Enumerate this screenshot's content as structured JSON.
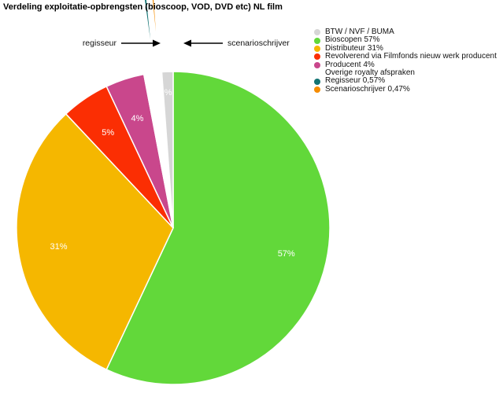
{
  "chart_data": {
    "type": "pie",
    "title": "Verdeling exploitatie-opbrengsten (bioscoop, VOD, DVD etc) NL film",
    "slices": [
      {
        "key": "bioscopen",
        "legend": "Bioscopen 57%",
        "value": 57,
        "label": "57%",
        "color": "#62d83a",
        "exploded": false
      },
      {
        "key": "distributeur",
        "legend": "Distributeur 31%",
        "value": 31,
        "label": "31%",
        "color": "#f5b700",
        "exploded": false
      },
      {
        "key": "revolverend",
        "legend": "Revolverend via Filmfonds nieuw werk producent",
        "value": 5,
        "label": "5%",
        "color": "#fb2e03",
        "exploded": false
      },
      {
        "key": "producent",
        "legend": "Producent 4%",
        "value": 4,
        "label": "4%",
        "color": "#c9478c",
        "exploded": false
      },
      {
        "key": "overige",
        "legend": "Overige royalty afspraken",
        "value": 0.8,
        "label": "",
        "color": "#ffffff",
        "exploded": false
      },
      {
        "key": "regisseur",
        "legend": "Regisseur 0,57%",
        "value": 0.57,
        "label": "",
        "color": "#127373",
        "exploded": true
      },
      {
        "key": "scenarioschrijver",
        "legend": "Scenarioschrijver 0,47%",
        "value": 0.47,
        "label": "",
        "color": "#f58c00",
        "exploded": true
      },
      {
        "key": "btw",
        "legend": "BTW / NVF / BUMA",
        "value": 1.16,
        "label": "%",
        "color": "#d6d6d6",
        "exploded": false
      }
    ],
    "legend_order": [
      "btw",
      "bioscopen",
      "distributeur",
      "revolverend",
      "producent",
      "overige",
      "regisseur",
      "scenarioschrijver"
    ],
    "legend_position": "top-right"
  },
  "annotations": {
    "regisseur": "regisseur",
    "scenarioschrijver": "scenarioschrijver"
  }
}
